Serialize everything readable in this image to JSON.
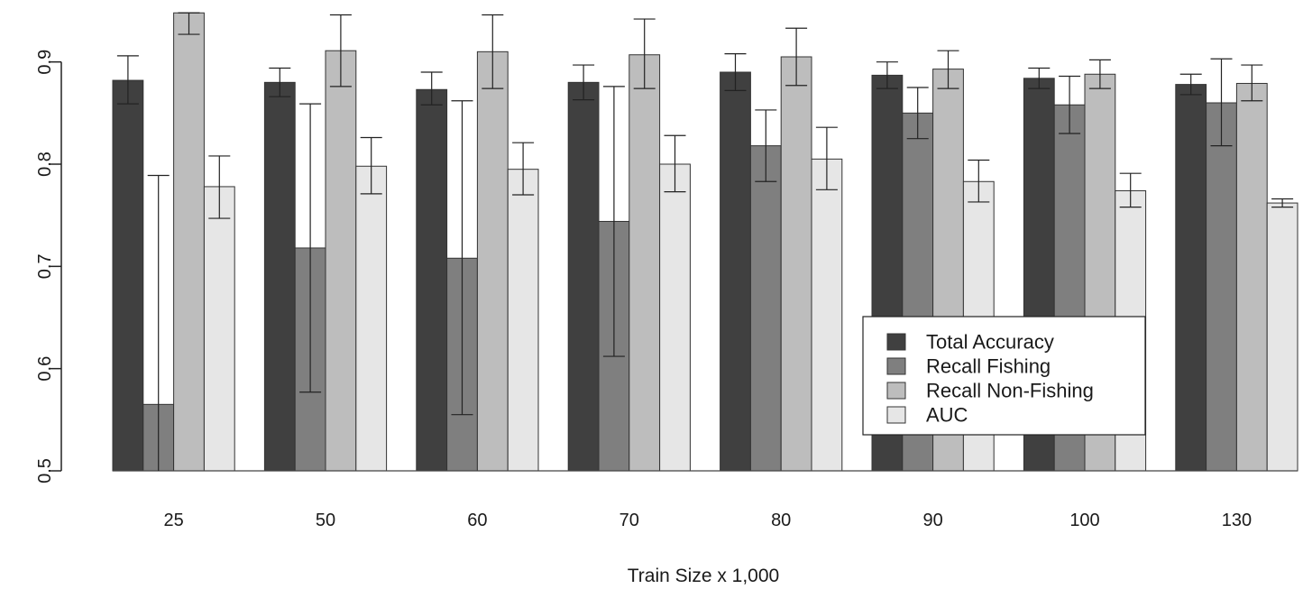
{
  "chart_data": {
    "type": "bar",
    "title": "",
    "xlabel": "Train Size x 1,000",
    "ylabel": "",
    "ylim": [
      0.5,
      0.95
    ],
    "yticks": [
      0.5,
      0.6,
      0.7,
      0.8,
      0.9
    ],
    "ytick_labels": [
      "0.5",
      "0.6",
      "0.7",
      "0.8",
      "0.9"
    ],
    "grid": false,
    "legend_position": "bottom-right",
    "categories": [
      "25",
      "50",
      "60",
      "70",
      "80",
      "90",
      "100",
      "130"
    ],
    "series": [
      {
        "name": "Total Accuracy",
        "color": "#404040",
        "values": [
          0.882,
          0.88,
          0.873,
          0.88,
          0.89,
          0.887,
          0.884,
          0.878
        ],
        "err_low": [
          0.859,
          0.866,
          0.858,
          0.863,
          0.872,
          0.874,
          0.874,
          0.868
        ],
        "err_high": [
          0.906,
          0.894,
          0.89,
          0.897,
          0.908,
          0.9,
          0.894,
          0.888
        ]
      },
      {
        "name": "Recall Fishing",
        "color": "#7f7f7f",
        "values": [
          0.565,
          0.718,
          0.708,
          0.744,
          0.818,
          0.85,
          0.858,
          0.86
        ],
        "err_low": [
          0.5,
          0.577,
          0.555,
          0.612,
          0.783,
          0.825,
          0.83,
          0.818
        ],
        "err_high": [
          0.789,
          0.859,
          0.862,
          0.876,
          0.853,
          0.875,
          0.886,
          0.903
        ]
      },
      {
        "name": "Recall Non-Fishing",
        "color": "#bdbdbd",
        "values": [
          0.948,
          0.911,
          0.91,
          0.907,
          0.905,
          0.893,
          0.888,
          0.879
        ],
        "err_low": [
          0.927,
          0.876,
          0.874,
          0.874,
          0.877,
          0.874,
          0.874,
          0.862
        ],
        "err_high": [
          0.948,
          0.946,
          0.946,
          0.942,
          0.933,
          0.911,
          0.902,
          0.897
        ]
      },
      {
        "name": "AUC",
        "color": "#e6e6e6",
        "values": [
          0.778,
          0.798,
          0.795,
          0.8,
          0.805,
          0.783,
          0.774,
          0.762
        ],
        "err_low": [
          0.747,
          0.771,
          0.77,
          0.773,
          0.775,
          0.763,
          0.758,
          0.758
        ],
        "err_high": [
          0.808,
          0.826,
          0.821,
          0.828,
          0.836,
          0.804,
          0.791,
          0.766
        ]
      }
    ]
  }
}
